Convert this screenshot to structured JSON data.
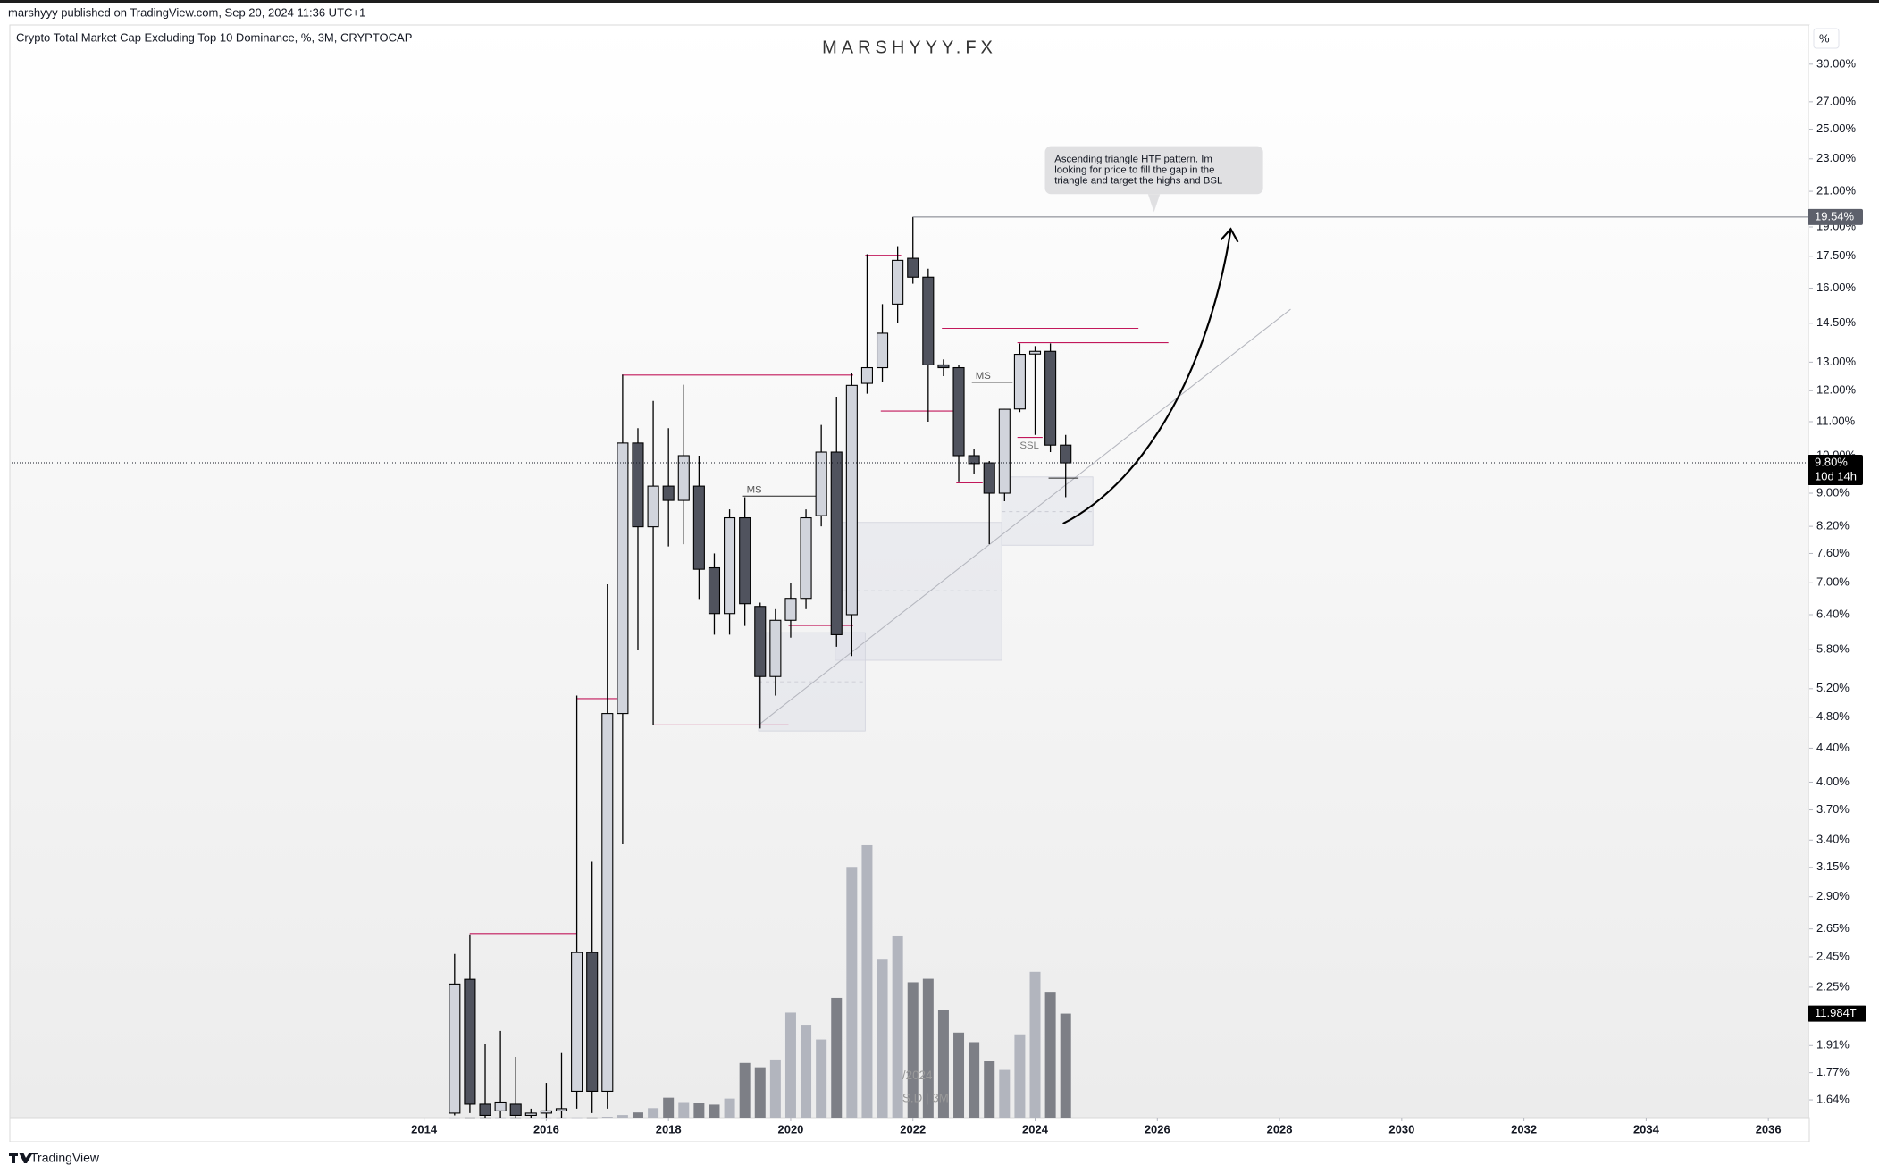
{
  "header": {
    "text": "marshyyy published on TradingView.com, Sep 20, 2024 11:36 UTC+1"
  },
  "footer": {
    "brand": "TradingView"
  },
  "chart_data": {
    "type": "candlestick",
    "title": "Crypto Total Market Cap Excluding Top 10 Dominance, %, 3M, CRYPTOCAP",
    "watermark": "MARSHYYY.FX",
    "scale_button": "%",
    "log_scale": true,
    "x": [
      2014.5,
      2014.75,
      2015,
      2015.25,
      2015.5,
      2015.75,
      2016,
      2016.25,
      2016.5,
      2016.75,
      2017,
      2017.25,
      2017.5,
      2017.75,
      2018,
      2018.25,
      2018.5,
      2018.75,
      2019,
      2019.25,
      2019.5,
      2019.75,
      2020,
      2020.25,
      2020.5,
      2020.75,
      2021,
      2021.25,
      2021.5,
      2021.75,
      2022,
      2022.25,
      2022.5,
      2022.75,
      2023,
      2023.25,
      2023.5,
      2023.75,
      2024,
      2024.25,
      2024.5
    ],
    "open": [
      1.58,
      2.3,
      1.62,
      1.59,
      1.62,
      1.57,
      1.58,
      1.59,
      1.68,
      2.48,
      1.68,
      4.85,
      10.36,
      8.19,
      9.18,
      8.82,
      9.18,
      7.3,
      6.42,
      8.4,
      6.55,
      5.38,
      6.3,
      6.7,
      8.45,
      10.1,
      6.4,
      12.25,
      12.8,
      15.3,
      17.4,
      16.5,
      12.9,
      12.8,
      10.0,
      9.8,
      9.0,
      11.4,
      13.3,
      13.4,
      10.3
    ],
    "high": [
      2.47,
      2.61,
      1.92,
      1.99,
      1.85,
      1.6,
      1.72,
      1.87,
      5.1,
      3.2,
      6.97,
      12.55,
      10.8,
      11.66,
      10.8,
      12.2,
      10.0,
      7.6,
      8.6,
      8.9,
      6.62,
      6.5,
      7.0,
      8.6,
      10.9,
      11.8,
      12.6,
      17.6,
      15.3,
      18.0,
      19.54,
      16.9,
      13.1,
      12.9,
      10.2,
      9.85,
      11.4,
      13.7,
      13.6,
      13.7,
      10.6
    ],
    "low": [
      1.57,
      1.58,
      1.56,
      1.56,
      1.56,
      1.56,
      1.56,
      1.56,
      1.6,
      1.58,
      1.6,
      3.36,
      5.79,
      4.7,
      7.75,
      7.8,
      6.69,
      6.05,
      6.05,
      6.2,
      4.65,
      5.1,
      6.0,
      6.5,
      8.2,
      5.85,
      5.7,
      11.9,
      12.3,
      14.5,
      16.2,
      11.0,
      12.5,
      9.3,
      9.5,
      7.8,
      8.8,
      11.3,
      10.6,
      10.1,
      8.9
    ],
    "close": [
      2.27,
      1.62,
      1.57,
      1.63,
      1.57,
      1.58,
      1.59,
      1.6,
      2.48,
      1.68,
      4.85,
      10.36,
      8.19,
      9.18,
      8.82,
      10.0,
      7.27,
      6.42,
      8.4,
      6.6,
      5.38,
      6.3,
      6.7,
      8.4,
      10.1,
      6.05,
      12.18,
      12.8,
      14.1,
      17.3,
      16.5,
      12.9,
      12.8,
      10.0,
      9.78,
      9.0,
      11.39,
      13.29,
      13.4,
      10.3,
      9.8
    ],
    "up_color": "#d1d4dc",
    "down_color": "#50535e",
    "volume": {
      "values": [
        0.02,
        0.02,
        0.02,
        0.02,
        0.02,
        0.02,
        0.02,
        0.02,
        0.02,
        0.02,
        0.1,
        0.3,
        0.6,
        1.1,
        2.3,
        1.8,
        1.7,
        1.5,
        2.2,
        6.3,
        5.8,
        6.7,
        12.1,
        10.7,
        9.0,
        13.8,
        28.9,
        31.4,
        18.3,
        20.9,
        15.6,
        16.0,
        12.4,
        9.8,
        8.7,
        6.5,
        5.5,
        9.6,
        16.8,
        14.5,
        11.984
      ],
      "up_color": "#b2b5be",
      "down_color": "#7d7f86",
      "ylim": [
        0,
        35
      ],
      "last_label": {
        "value": 11.984,
        "label": "11.984T"
      }
    },
    "xlim": [
      2007.25,
      2036.67
    ],
    "xticks": [
      2014,
      2016,
      2018,
      2020,
      2022,
      2024,
      2026,
      2028,
      2030,
      2032,
      2034,
      2036
    ],
    "ylim": [
      1.56,
      33.4
    ],
    "yticks": [
      {
        "value": 30,
        "label": "30.00%"
      },
      {
        "value": 27,
        "label": "27.00%"
      },
      {
        "value": 25,
        "label": "25.00%"
      },
      {
        "value": 23,
        "label": "23.00%"
      },
      {
        "value": 21,
        "label": "21.00%"
      },
      {
        "value": 19,
        "label": "19.00%"
      },
      {
        "value": 17.5,
        "label": "17.50%"
      },
      {
        "value": 16,
        "label": "16.00%"
      },
      {
        "value": 14.5,
        "label": "14.50%"
      },
      {
        "value": 13,
        "label": "13.00%"
      },
      {
        "value": 12,
        "label": "12.00%"
      },
      {
        "value": 11,
        "label": "11.00%"
      },
      {
        "value": 10,
        "label": "10.00%"
      },
      {
        "value": 9,
        "label": "9.00%"
      },
      {
        "value": 8.2,
        "label": "8.20%"
      },
      {
        "value": 7.6,
        "label": "7.60%"
      },
      {
        "value": 7,
        "label": "7.00%"
      },
      {
        "value": 6.4,
        "label": "6.40%"
      },
      {
        "value": 5.8,
        "label": "5.80%"
      },
      {
        "value": 5.2,
        "label": "5.20%"
      },
      {
        "value": 4.8,
        "label": "4.80%"
      },
      {
        "value": 4.4,
        "label": "4.40%"
      },
      {
        "value": 4,
        "label": "4.00%"
      },
      {
        "value": 3.7,
        "label": "3.70%"
      },
      {
        "value": 3.4,
        "label": "3.40%"
      },
      {
        "value": 3.15,
        "label": "3.15%"
      },
      {
        "value": 2.9,
        "label": "2.90%"
      },
      {
        "value": 2.65,
        "label": "2.65%"
      },
      {
        "value": 2.45,
        "label": "2.45%"
      },
      {
        "value": 2.25,
        "label": "2.25%"
      },
      {
        "value": 1.91,
        "label": "1.91%"
      },
      {
        "value": 1.77,
        "label": "1.77%"
      },
      {
        "value": 1.64,
        "label": "1.64%"
      }
    ],
    "price_labels": [
      {
        "value": 19.54,
        "label": "19.54%",
        "color": "#5d606b"
      },
      {
        "value": 9.8,
        "label": "9.80%",
        "color": "#000000"
      }
    ],
    "countdown": "10d 14h",
    "annotations": {
      "ms": [
        "MS",
        "MS"
      ],
      "ssl": "SSL",
      "callout": [
        "Ascending triangle HTF pattern. Im",
        "looking for price to fill the gap in the",
        "triangle and target the highs and BSL"
      ],
      "faded": [
        "/2024",
        "S.D | 3M"
      ]
    }
  }
}
